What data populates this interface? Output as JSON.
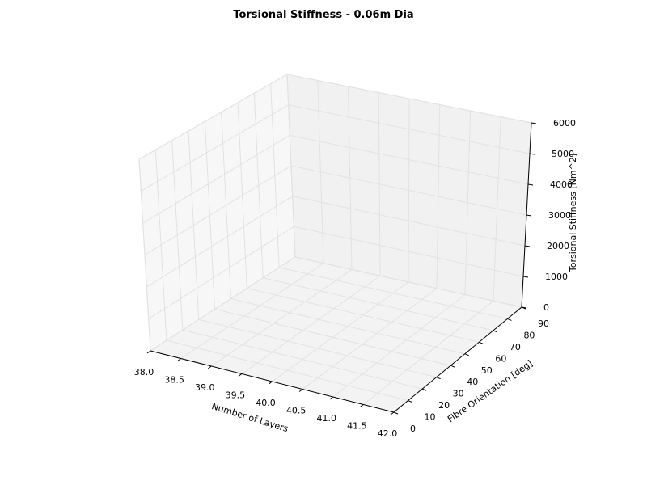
{
  "chart_data": {
    "type": "surface",
    "title": "Torsional Stiffness - 0.06m Dia",
    "xlabel": "Number of Layers",
    "ylabel": "Fibre Orientation [deg]",
    "zlabel": "Torsional Stiffness [Nm^2]",
    "xlim": [
      38.0,
      42.0
    ],
    "ylim": [
      0,
      90
    ],
    "zlim": [
      0,
      6000
    ],
    "x_ticks": [
      "38.0",
      "38.5",
      "39.0",
      "39.5",
      "40.0",
      "40.5",
      "41.0",
      "41.5",
      "42.0"
    ],
    "y_ticks": [
      "0",
      "10",
      "20",
      "30",
      "40",
      "50",
      "60",
      "70",
      "80",
      "90"
    ],
    "z_ticks": [
      "0",
      "1000",
      "2000",
      "3000",
      "4000",
      "5000",
      "6000"
    ],
    "grid": true,
    "series": []
  }
}
